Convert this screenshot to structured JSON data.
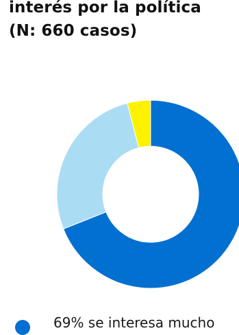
{
  "title": {
    "line1": "interés por la política",
    "line2": "(N: 660 casos)"
  },
  "chart_data": {
    "type": "pie",
    "donut": true,
    "title": "interés por la política (N: 660 casos)",
    "slices": [
      {
        "value": 69,
        "color": "#0270d0"
      },
      {
        "value": 27,
        "color": "#aaddf4"
      },
      {
        "value": 4,
        "color": "#fff200"
      }
    ],
    "legend": [
      {
        "label": "69% se interesa mucho",
        "color": "#0270d0"
      }
    ],
    "legend_placement": "bottom"
  }
}
